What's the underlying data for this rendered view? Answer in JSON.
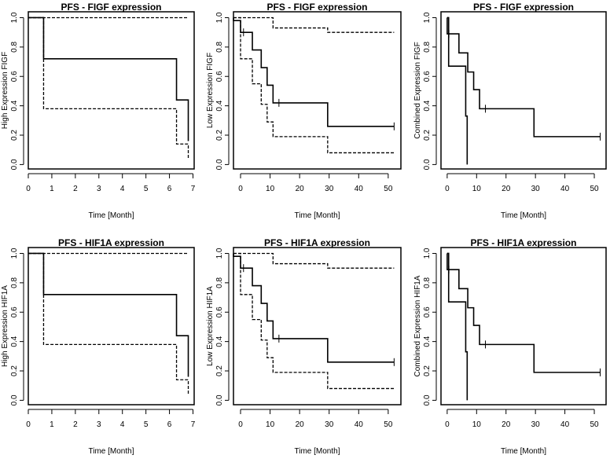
{
  "chart_data": [
    {
      "type": "line",
      "subtype": "kaplan-meier",
      "title": "PFS - FIGF expression",
      "xlabel": "Time [Month]",
      "ylabel": "High Expression FIGF",
      "xlim": [
        0,
        7.05
      ],
      "ylim": [
        -0.03,
        1.04
      ],
      "xticks": [
        0,
        1,
        2,
        3,
        4,
        5,
        6,
        7
      ],
      "yticks": [
        "0.0",
        "0.2",
        "0.4",
        "0.6",
        "0.8",
        "1.0"
      ],
      "series": [
        {
          "style": "solid",
          "steps": [
            [
              0,
              1
            ],
            [
              0.65,
              0.72
            ],
            [
              6.3,
              0.44
            ],
            [
              6.8,
              0.16
            ]
          ],
          "end": 6.8,
          "censor": []
        },
        {
          "style": "dashed",
          "steps": [
            [
              0,
              1
            ]
          ],
          "end": 6.8,
          "censor": []
        },
        {
          "style": "dashed",
          "steps": [
            [
              0,
              1
            ],
            [
              0.65,
              0.38
            ],
            [
              6.3,
              0.14
            ],
            [
              6.8,
              0.04
            ]
          ],
          "end": 6.8,
          "censor": []
        }
      ]
    },
    {
      "type": "line",
      "subtype": "kaplan-meier",
      "title": "PFS - FIGF expression",
      "xlabel": "Time [Month]",
      "ylabel": "Low Expression FIGF",
      "xlim": [
        -2.4,
        54.3
      ],
      "ylim": [
        -0.03,
        1.04
      ],
      "xticks": [
        0,
        10,
        20,
        30,
        40,
        50
      ],
      "yticks": [
        "0.0",
        "0.2",
        "0.4",
        "0.6",
        "0.8",
        "1.0"
      ],
      "series": [
        {
          "style": "solid",
          "steps": [
            [
              -2.4,
              1
            ],
            [
              -2.4,
              0.98
            ],
            [
              0,
              0.9
            ],
            [
              4,
              0.78
            ],
            [
              7,
              0.66
            ],
            [
              9,
              0.54
            ],
            [
              11,
              0.42
            ],
            [
              29.5,
              0.26
            ]
          ],
          "end": 52,
          "censor": [
            [
              1,
              0.9
            ],
            [
              13,
              0.42
            ],
            [
              52,
              0.26
            ]
          ]
        },
        {
          "style": "dashed",
          "steps": [
            [
              -2.4,
              1
            ],
            [
              11,
              0.93
            ],
            [
              29.5,
              0.9
            ]
          ],
          "end": 52,
          "censor": []
        },
        {
          "style": "dashed",
          "steps": [
            [
              -2.4,
              1
            ],
            [
              0,
              0.72
            ],
            [
              4,
              0.55
            ],
            [
              7,
              0.41
            ],
            [
              9,
              0.29
            ],
            [
              11,
              0.19
            ],
            [
              29.5,
              0.08
            ]
          ],
          "end": 52,
          "censor": []
        }
      ]
    },
    {
      "type": "line",
      "subtype": "kaplan-meier",
      "title": "PFS - FIGF expression",
      "xlabel": "Time [Month]",
      "ylabel": "Combined Expression FIGF",
      "xlim": [
        -2.1,
        54
      ],
      "ylim": [
        -0.03,
        1.04
      ],
      "xticks": [
        0,
        10,
        20,
        30,
        40,
        50
      ],
      "yticks": [
        "0.0",
        "0.2",
        "0.4",
        "0.6",
        "0.8",
        "1.0"
      ],
      "series": [
        {
          "style": "solid",
          "steps": [
            [
              0,
              1
            ],
            [
              0.5,
              0.67
            ],
            [
              6.3,
              0.33
            ],
            [
              6.8,
              0
            ]
          ],
          "end": 6.8,
          "censor": []
        },
        {
          "style": "solid",
          "steps": [
            [
              0,
              1
            ],
            [
              0.01,
              0.89
            ],
            [
              4,
              0.76
            ],
            [
              7,
              0.63
            ],
            [
              9,
              0.51
            ],
            [
              11,
              0.38
            ],
            [
              29.5,
              0.19
            ]
          ],
          "end": 52,
          "censor": [
            [
              0.6,
              0.89
            ],
            [
              13,
              0.38
            ],
            [
              52,
              0.19
            ]
          ]
        }
      ]
    },
    {
      "type": "line",
      "subtype": "kaplan-meier",
      "title": "PFS - HIF1A expression",
      "xlabel": "Time [Month]",
      "ylabel": "High Expression HIF1A",
      "xlim": [
        0,
        7.05
      ],
      "ylim": [
        -0.03,
        1.04
      ],
      "xticks": [
        0,
        1,
        2,
        3,
        4,
        5,
        6,
        7
      ],
      "yticks": [
        "0.0",
        "0.2",
        "0.4",
        "0.6",
        "0.8",
        "1.0"
      ],
      "series": [
        {
          "style": "solid",
          "steps": [
            [
              0,
              1
            ],
            [
              0.65,
              0.72
            ],
            [
              6.3,
              0.44
            ],
            [
              6.8,
              0.16
            ]
          ],
          "end": 6.8,
          "censor": []
        },
        {
          "style": "dashed",
          "steps": [
            [
              0,
              1
            ]
          ],
          "end": 6.8,
          "censor": []
        },
        {
          "style": "dashed",
          "steps": [
            [
              0,
              1
            ],
            [
              0.65,
              0.38
            ],
            [
              6.3,
              0.14
            ],
            [
              6.8,
              0.04
            ]
          ],
          "end": 6.8,
          "censor": []
        }
      ]
    },
    {
      "type": "line",
      "subtype": "kaplan-meier",
      "title": "PFS - HIF1A expression",
      "xlabel": "Time [Month]",
      "ylabel": "Low Expression HIF1A",
      "xlim": [
        -2.4,
        54.3
      ],
      "ylim": [
        -0.03,
        1.04
      ],
      "xticks": [
        0,
        10,
        20,
        30,
        40,
        50
      ],
      "yticks": [
        "0.0",
        "0.2",
        "0.4",
        "0.6",
        "0.8",
        "1.0"
      ],
      "series": [
        {
          "style": "solid",
          "steps": [
            [
              -2.4,
              1
            ],
            [
              -2.4,
              0.98
            ],
            [
              0,
              0.9
            ],
            [
              4,
              0.78
            ],
            [
              7,
              0.66
            ],
            [
              9,
              0.54
            ],
            [
              11,
              0.42
            ],
            [
              29.5,
              0.26
            ]
          ],
          "end": 52,
          "censor": [
            [
              1,
              0.9
            ],
            [
              13,
              0.42
            ],
            [
              52,
              0.26
            ]
          ]
        },
        {
          "style": "dashed",
          "steps": [
            [
              -2.4,
              1
            ],
            [
              11,
              0.93
            ],
            [
              29.5,
              0.9
            ]
          ],
          "end": 52,
          "censor": []
        },
        {
          "style": "dashed",
          "steps": [
            [
              -2.4,
              1
            ],
            [
              0,
              0.72
            ],
            [
              4,
              0.55
            ],
            [
              7,
              0.41
            ],
            [
              9,
              0.29
            ],
            [
              11,
              0.19
            ],
            [
              29.5,
              0.08
            ]
          ],
          "end": 52,
          "censor": []
        }
      ]
    },
    {
      "type": "line",
      "subtype": "kaplan-meier",
      "title": "PFS - HIF1A expression",
      "xlabel": "Time [Month]",
      "ylabel": "Combined Expression HIF1A",
      "xlim": [
        -2.1,
        54
      ],
      "ylim": [
        -0.03,
        1.04
      ],
      "xticks": [
        0,
        10,
        20,
        30,
        40,
        50
      ],
      "yticks": [
        "0.0",
        "0.2",
        "0.4",
        "0.6",
        "0.8",
        "1.0"
      ],
      "series": [
        {
          "style": "solid",
          "steps": [
            [
              0,
              1
            ],
            [
              0.5,
              0.67
            ],
            [
              6.3,
              0.33
            ],
            [
              6.8,
              0
            ]
          ],
          "end": 6.8,
          "censor": []
        },
        {
          "style": "solid",
          "steps": [
            [
              0,
              1
            ],
            [
              0.01,
              0.89
            ],
            [
              4,
              0.76
            ],
            [
              7,
              0.63
            ],
            [
              9,
              0.51
            ],
            [
              11,
              0.38
            ],
            [
              29.5,
              0.19
            ]
          ],
          "end": 52,
          "censor": [
            [
              0.6,
              0.89
            ],
            [
              13,
              0.38
            ],
            [
              52,
              0.19
            ]
          ]
        }
      ]
    }
  ]
}
